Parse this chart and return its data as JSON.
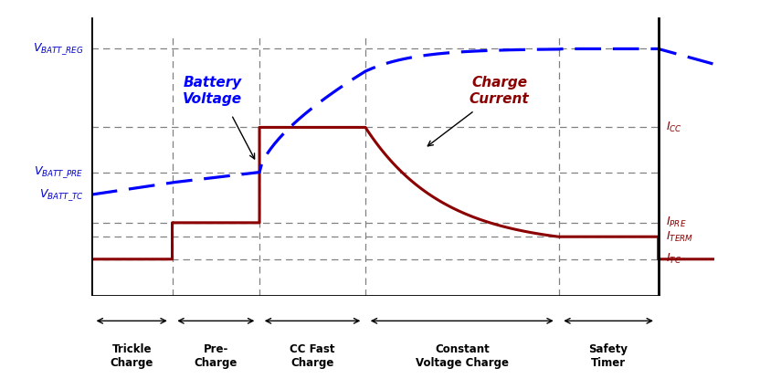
{
  "bg_color": "#ffffff",
  "blue_color": "#0000ff",
  "dark_red_color": "#8B0000",
  "grid_color": "#808080",
  "phase_boundaries": [
    0.13,
    0.27,
    0.44,
    0.75,
    0.91
  ],
  "v_batt_reg": 0.88,
  "v_batt_pre": 0.44,
  "v_batt_tc": 0.36,
  "i_cc": 0.6,
  "i_pre": 0.26,
  "i_term": 0.21,
  "i_tc": 0.13,
  "phases": [
    "Trickle\nCharge",
    "Pre-\nCharge",
    "CC Fast\nCharge",
    "Constant\nVoltage Charge",
    "Safety\nTimer"
  ],
  "left_label_color": "#0000cc",
  "right_label_color": "#8B0000"
}
